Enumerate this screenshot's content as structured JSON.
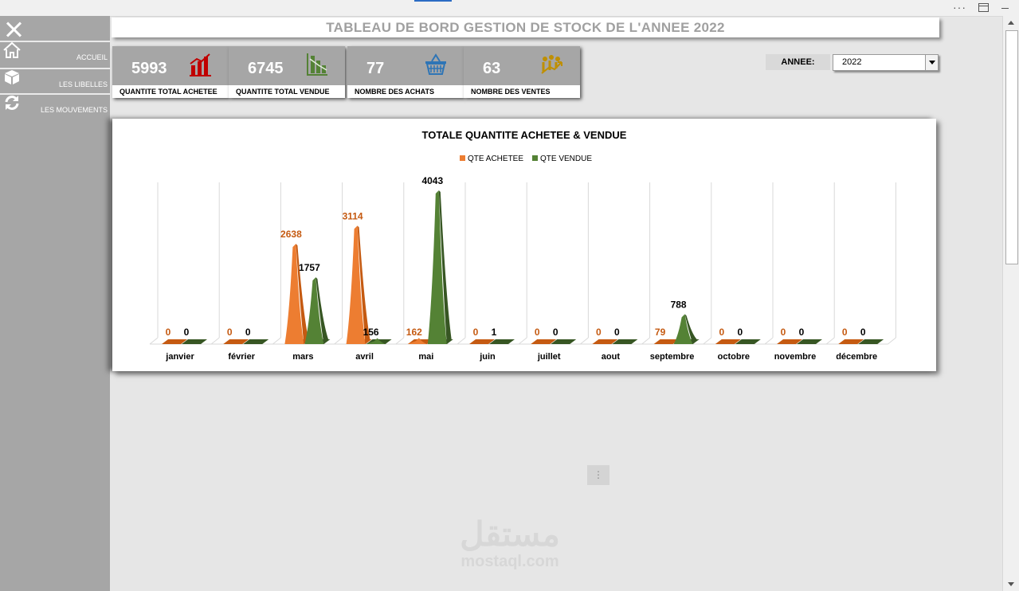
{
  "header": {
    "title": "TABLEAU DE BORD GESTION DE STOCK DE L'ANNEE 2022"
  },
  "sidebar": {
    "items": [
      {
        "label": "ACCUEIL",
        "icon": "home-icon"
      },
      {
        "label": "LES LIBELLES",
        "icon": "box-icon"
      },
      {
        "label": "LES MOUVEMENTS",
        "icon": "refresh-icon"
      }
    ]
  },
  "kpis": [
    {
      "value": "5993",
      "label": "QUANTITE TOTAL ACHETEE",
      "icon": "bar-chart-up-icon",
      "color": "#c00000"
    },
    {
      "value": "6745",
      "label": "QUANTITE TOTAL VENDUE",
      "icon": "bar-chart-down-icon",
      "color": "#548235"
    },
    {
      "value": "77",
      "label": "NOMBRE DES  ACHATS",
      "icon": "basket-icon",
      "color": "#2e75b6"
    },
    {
      "value": "63",
      "label": "NOMBRE DES VENTES",
      "icon": "growth-people-icon",
      "color": "#bf8f00"
    }
  ],
  "filter": {
    "label": "ANNEE:",
    "value": "2022"
  },
  "watermark": {
    "arabic": "مستقل",
    "latin": "mostaql.com"
  },
  "colors": {
    "achetee": "#ed7d31",
    "vendue": "#548235",
    "achetee_label": "#c55a11"
  },
  "chart_data": {
    "type": "bar",
    "title": "TOTALE QUANTITE ACHETEE & VENDUE",
    "categories": [
      "janvier",
      "février",
      "mars",
      "avril",
      "mai",
      "juin",
      "juillet",
      "aout",
      "septembre",
      "octobre",
      "novembre",
      "décembre"
    ],
    "series": [
      {
        "name": "QTE ACHETEE",
        "values": [
          0,
          0,
          2638,
          3114,
          162,
          0,
          0,
          0,
          79,
          0,
          0,
          0
        ]
      },
      {
        "name": "QTE VENDUE",
        "values": [
          0,
          0,
          1757,
          156,
          4043,
          1,
          0,
          0,
          788,
          0,
          0,
          0
        ]
      }
    ],
    "legend": "top-center",
    "grid": true
  }
}
